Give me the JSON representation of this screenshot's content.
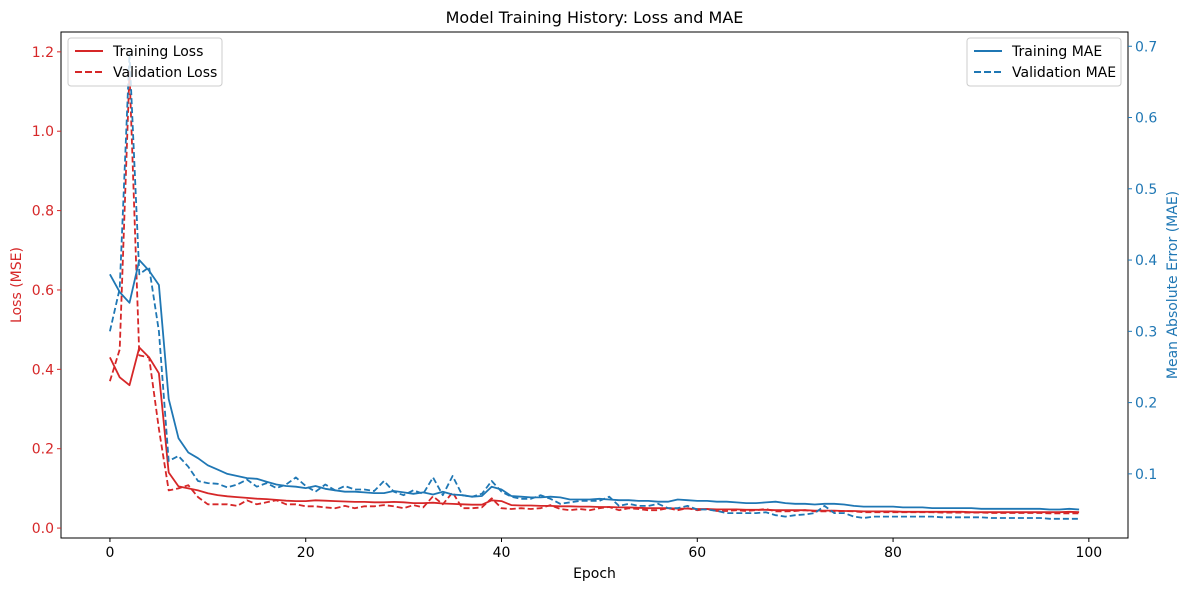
{
  "chart_data": {
    "type": "line",
    "title": "Model Training History: Loss and MAE",
    "xlabel": "Epoch",
    "ylabel_left": "Loss (MSE)",
    "ylabel_right": "Mean Absolute Error (MAE)",
    "xlim": [
      -5,
      104
    ],
    "ylim_left": [
      -0.025,
      1.25
    ],
    "ylim_right": [
      0.01,
      0.72
    ],
    "xticks": [
      0,
      20,
      40,
      60,
      80,
      100
    ],
    "yticks_left": [
      0.0,
      0.2,
      0.4,
      0.6,
      0.8,
      1.0,
      1.2
    ],
    "yticks_right": [
      0.1,
      0.2,
      0.3,
      0.4,
      0.5,
      0.6,
      0.7
    ],
    "grid": false,
    "colors": {
      "loss": "#d62728",
      "mae": "#1f77b4"
    },
    "legend_left": {
      "placement": "top-left",
      "entries": [
        "Training Loss",
        "Validation Loss"
      ]
    },
    "legend_right": {
      "placement": "top-right",
      "entries": [
        "Training MAE",
        "Validation MAE"
      ]
    },
    "series": [
      {
        "name": "Training Loss",
        "axis": "left",
        "style": "solid",
        "color": "#d62728",
        "x": [
          0,
          1,
          2,
          3,
          4,
          5,
          6,
          7,
          8,
          9,
          10,
          11,
          12,
          13,
          14,
          15,
          16,
          17,
          18,
          19,
          20,
          21,
          22,
          23,
          24,
          25,
          26,
          27,
          28,
          29,
          30,
          31,
          32,
          33,
          34,
          35,
          36,
          37,
          38,
          39,
          40,
          41,
          42,
          43,
          44,
          45,
          46,
          47,
          48,
          49,
          50,
          51,
          52,
          53,
          54,
          55,
          56,
          57,
          58,
          59,
          60,
          61,
          62,
          63,
          64,
          65,
          66,
          67,
          68,
          69,
          70,
          71,
          72,
          73,
          74,
          75,
          76,
          77,
          78,
          79,
          80,
          81,
          82,
          83,
          84,
          85,
          86,
          87,
          88,
          89,
          90,
          91,
          92,
          93,
          94,
          95,
          96,
          97,
          98,
          99
        ],
        "values": [
          0.43,
          0.38,
          0.36,
          0.455,
          0.43,
          0.39,
          0.14,
          0.105,
          0.1,
          0.095,
          0.088,
          0.083,
          0.08,
          0.078,
          0.076,
          0.074,
          0.073,
          0.071,
          0.069,
          0.068,
          0.068,
          0.07,
          0.069,
          0.068,
          0.067,
          0.066,
          0.066,
          0.065,
          0.065,
          0.066,
          0.065,
          0.063,
          0.063,
          0.064,
          0.062,
          0.061,
          0.06,
          0.059,
          0.059,
          0.07,
          0.068,
          0.058,
          0.057,
          0.057,
          0.056,
          0.056,
          0.055,
          0.055,
          0.054,
          0.054,
          0.053,
          0.053,
          0.052,
          0.052,
          0.051,
          0.05,
          0.05,
          0.05,
          0.049,
          0.049,
          0.048,
          0.048,
          0.047,
          0.047,
          0.047,
          0.046,
          0.046,
          0.046,
          0.045,
          0.045,
          0.045,
          0.045,
          0.044,
          0.044,
          0.044,
          0.043,
          0.043,
          0.042,
          0.042,
          0.042,
          0.042,
          0.041,
          0.041,
          0.041,
          0.041,
          0.041,
          0.041,
          0.041,
          0.04,
          0.04,
          0.04,
          0.04,
          0.04,
          0.04,
          0.04,
          0.04,
          0.04,
          0.04,
          0.041,
          0.04
        ]
      },
      {
        "name": "Validation Loss",
        "axis": "left",
        "style": "dashed",
        "color": "#d62728",
        "x": [
          0,
          1,
          2,
          3,
          4,
          5,
          6,
          7,
          8,
          9,
          10,
          11,
          12,
          13,
          14,
          15,
          16,
          17,
          18,
          19,
          20,
          21,
          22,
          23,
          24,
          25,
          26,
          27,
          28,
          29,
          30,
          31,
          32,
          33,
          34,
          35,
          36,
          37,
          38,
          39,
          40,
          41,
          42,
          43,
          44,
          45,
          46,
          47,
          48,
          49,
          50,
          51,
          52,
          53,
          54,
          55,
          56,
          57,
          58,
          59,
          60,
          61,
          62,
          63,
          64,
          65,
          66,
          67,
          68,
          69,
          70,
          71,
          72,
          73,
          74,
          75,
          76,
          77,
          78,
          79,
          80,
          81,
          82,
          83,
          84,
          85,
          86,
          87,
          88,
          89,
          90,
          91,
          92,
          93,
          94,
          95,
          96,
          97,
          98,
          99
        ],
        "values": [
          0.37,
          0.45,
          1.15,
          0.435,
          0.43,
          0.25,
          0.095,
          0.1,
          0.108,
          0.078,
          0.06,
          0.06,
          0.06,
          0.056,
          0.07,
          0.06,
          0.065,
          0.07,
          0.06,
          0.06,
          0.055,
          0.055,
          0.052,
          0.05,
          0.056,
          0.05,
          0.055,
          0.055,
          0.058,
          0.055,
          0.05,
          0.058,
          0.052,
          0.08,
          0.06,
          0.09,
          0.05,
          0.05,
          0.052,
          0.075,
          0.05,
          0.048,
          0.05,
          0.048,
          0.05,
          0.058,
          0.048,
          0.045,
          0.048,
          0.045,
          0.05,
          0.053,
          0.045,
          0.05,
          0.048,
          0.045,
          0.045,
          0.05,
          0.045,
          0.05,
          0.045,
          0.048,
          0.043,
          0.043,
          0.045,
          0.043,
          0.045,
          0.048,
          0.042,
          0.042,
          0.043,
          0.045,
          0.042,
          0.042,
          0.042,
          0.043,
          0.042,
          0.04,
          0.04,
          0.04,
          0.04,
          0.04,
          0.04,
          0.04,
          0.04,
          0.039,
          0.039,
          0.039,
          0.039,
          0.039,
          0.038,
          0.038,
          0.038,
          0.038,
          0.038,
          0.038,
          0.037,
          0.037,
          0.037,
          0.037
        ]
      },
      {
        "name": "Training MAE",
        "axis": "right",
        "style": "solid",
        "color": "#1f77b4",
        "x": [
          0,
          1,
          2,
          3,
          4,
          5,
          6,
          7,
          8,
          9,
          10,
          11,
          12,
          13,
          14,
          15,
          16,
          17,
          18,
          19,
          20,
          21,
          22,
          23,
          24,
          25,
          26,
          27,
          28,
          29,
          30,
          31,
          32,
          33,
          34,
          35,
          36,
          37,
          38,
          39,
          40,
          41,
          42,
          43,
          44,
          45,
          46,
          47,
          48,
          49,
          50,
          51,
          52,
          53,
          54,
          55,
          56,
          57,
          58,
          59,
          60,
          61,
          62,
          63,
          64,
          65,
          66,
          67,
          68,
          69,
          70,
          71,
          72,
          73,
          74,
          75,
          76,
          77,
          78,
          79,
          80,
          81,
          82,
          83,
          84,
          85,
          86,
          87,
          88,
          89,
          90,
          91,
          92,
          93,
          94,
          95,
          96,
          97,
          98,
          99
        ],
        "values": [
          0.38,
          0.355,
          0.34,
          0.4,
          0.385,
          0.365,
          0.205,
          0.15,
          0.13,
          0.122,
          0.112,
          0.106,
          0.1,
          0.097,
          0.094,
          0.093,
          0.089,
          0.085,
          0.083,
          0.082,
          0.08,
          0.083,
          0.079,
          0.077,
          0.075,
          0.075,
          0.074,
          0.073,
          0.073,
          0.076,
          0.074,
          0.072,
          0.074,
          0.071,
          0.075,
          0.071,
          0.07,
          0.068,
          0.069,
          0.082,
          0.078,
          0.069,
          0.068,
          0.067,
          0.067,
          0.068,
          0.067,
          0.064,
          0.064,
          0.064,
          0.065,
          0.064,
          0.063,
          0.063,
          0.062,
          0.062,
          0.061,
          0.061,
          0.064,
          0.063,
          0.062,
          0.062,
          0.061,
          0.061,
          0.06,
          0.059,
          0.059,
          0.06,
          0.061,
          0.059,
          0.058,
          0.058,
          0.057,
          0.058,
          0.058,
          0.057,
          0.055,
          0.054,
          0.054,
          0.054,
          0.054,
          0.053,
          0.053,
          0.053,
          0.052,
          0.052,
          0.052,
          0.052,
          0.052,
          0.051,
          0.051,
          0.051,
          0.051,
          0.051,
          0.051,
          0.051,
          0.05,
          0.05,
          0.051,
          0.05
        ]
      },
      {
        "name": "Validation MAE",
        "axis": "right",
        "style": "dashed",
        "color": "#1f77b4",
        "x": [
          0,
          1,
          2,
          3,
          4,
          5,
          6,
          7,
          8,
          9,
          10,
          11,
          12,
          13,
          14,
          15,
          16,
          17,
          18,
          19,
          20,
          21,
          22,
          23,
          24,
          25,
          26,
          27,
          28,
          29,
          30,
          31,
          32,
          33,
          34,
          35,
          36,
          37,
          38,
          39,
          40,
          41,
          42,
          43,
          44,
          45,
          46,
          47,
          48,
          49,
          50,
          51,
          52,
          53,
          54,
          55,
          56,
          57,
          58,
          59,
          60,
          61,
          62,
          63,
          64,
          65,
          66,
          67,
          68,
          69,
          70,
          71,
          72,
          73,
          74,
          75,
          76,
          77,
          78,
          79,
          80,
          81,
          82,
          83,
          84,
          85,
          86,
          87,
          88,
          89,
          90,
          91,
          92,
          93,
          94,
          95,
          96,
          97,
          98,
          99
        ],
        "values": [
          0.3,
          0.36,
          0.69,
          0.38,
          0.39,
          0.3,
          0.118,
          0.125,
          0.11,
          0.09,
          0.087,
          0.086,
          0.081,
          0.085,
          0.092,
          0.082,
          0.087,
          0.08,
          0.085,
          0.095,
          0.083,
          0.075,
          0.085,
          0.077,
          0.083,
          0.078,
          0.078,
          0.076,
          0.09,
          0.075,
          0.07,
          0.077,
          0.072,
          0.095,
          0.07,
          0.097,
          0.07,
          0.068,
          0.072,
          0.09,
          0.075,
          0.068,
          0.065,
          0.065,
          0.07,
          0.065,
          0.058,
          0.06,
          0.062,
          0.062,
          0.062,
          0.068,
          0.055,
          0.058,
          0.055,
          0.055,
          0.058,
          0.052,
          0.052,
          0.055,
          0.05,
          0.05,
          0.048,
          0.045,
          0.045,
          0.045,
          0.045,
          0.046,
          0.042,
          0.04,
          0.042,
          0.043,
          0.045,
          0.055,
          0.045,
          0.045,
          0.04,
          0.038,
          0.04,
          0.04,
          0.04,
          0.04,
          0.04,
          0.04,
          0.04,
          0.039,
          0.039,
          0.039,
          0.039,
          0.039,
          0.038,
          0.038,
          0.038,
          0.038,
          0.038,
          0.038,
          0.037,
          0.037,
          0.037,
          0.037
        ]
      }
    ]
  }
}
